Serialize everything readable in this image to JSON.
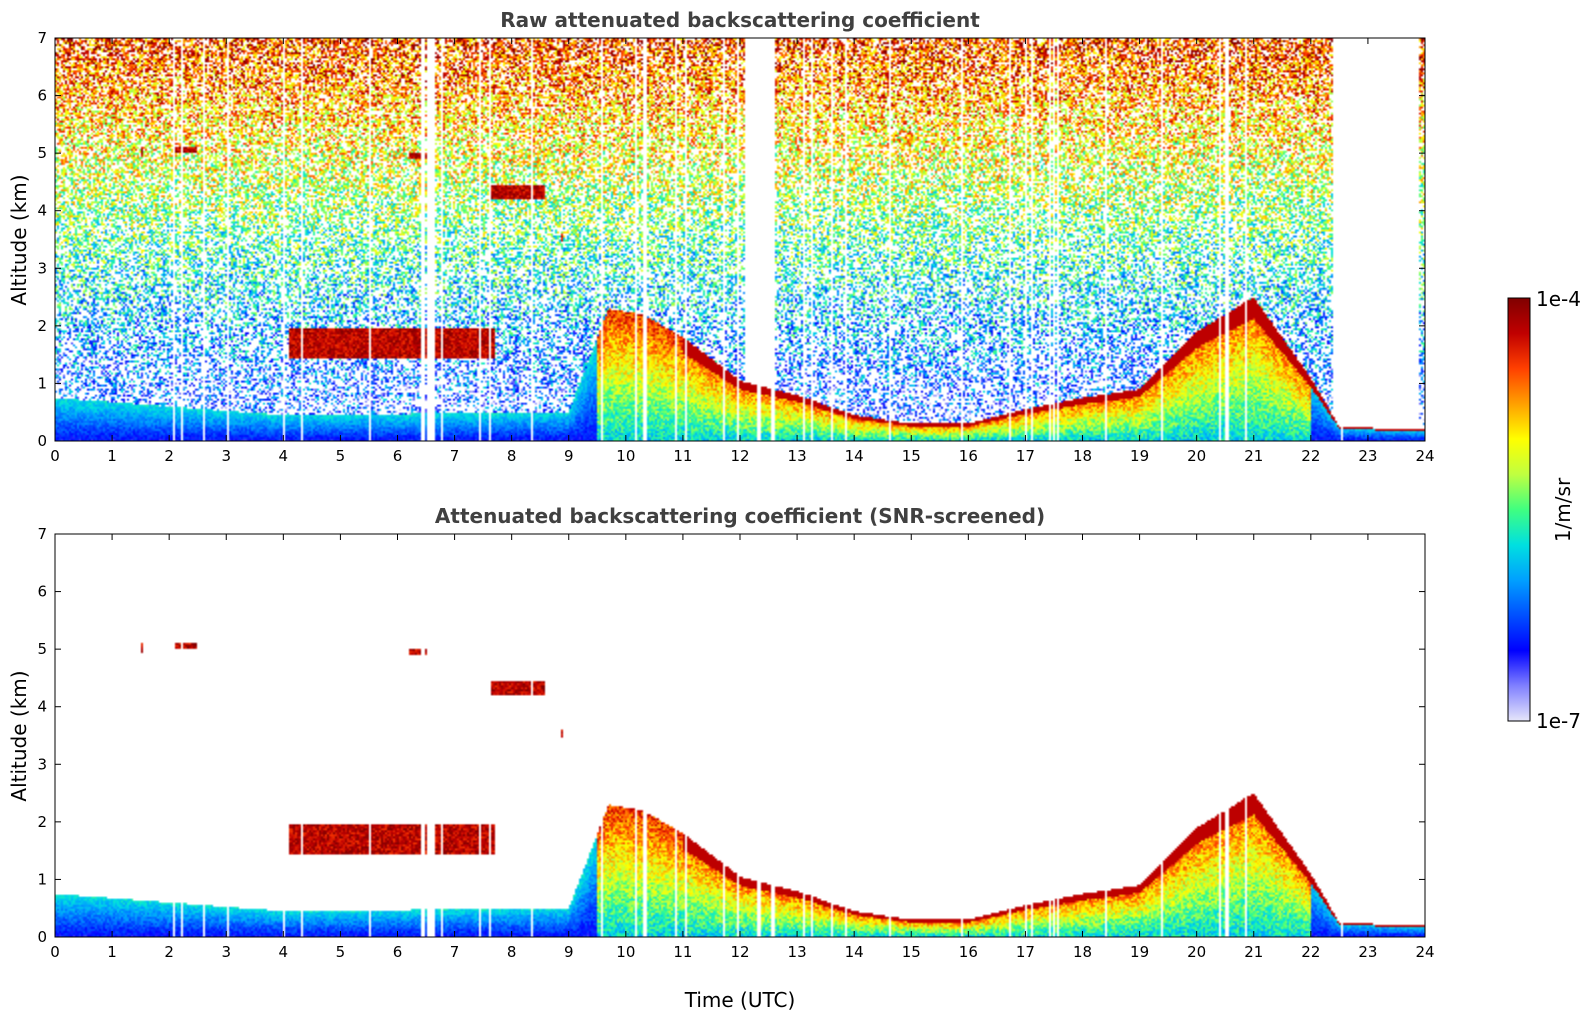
{
  "chart_data": [
    {
      "type": "heatmap",
      "title": "Raw attenuated backscattering coefficient",
      "xlabel": "",
      "ylabel": "Altitude (km)",
      "xlim": [
        0,
        24
      ],
      "ylim": [
        0,
        7
      ],
      "xticks": [
        "0",
        "1",
        "2",
        "3",
        "4",
        "5",
        "6",
        "7",
        "8",
        "9",
        "10",
        "11",
        "12",
        "13",
        "14",
        "15",
        "16",
        "17",
        "18",
        "19",
        "20",
        "21",
        "22",
        "23",
        "24"
      ],
      "yticks": [
        "0",
        "1",
        "2",
        "3",
        "4",
        "5",
        "6",
        "7"
      ],
      "screened": false
    },
    {
      "type": "heatmap",
      "title": "Attenuated backscattering coefficient (SNR-screened)",
      "xlabel": "Time (UTC)",
      "ylabel": "Altitude (km)",
      "xlim": [
        0,
        24
      ],
      "ylim": [
        0,
        7
      ],
      "xticks": [
        "0",
        "1",
        "2",
        "3",
        "4",
        "5",
        "6",
        "7",
        "8",
        "9",
        "10",
        "11",
        "12",
        "13",
        "14",
        "15",
        "16",
        "17",
        "18",
        "19",
        "20",
        "21",
        "22",
        "23",
        "24"
      ],
      "yticks": [
        "0",
        "1",
        "2",
        "3",
        "4",
        "5",
        "6",
        "7"
      ],
      "screened": true
    }
  ],
  "colorbar": {
    "max_label": "1e-4",
    "min_label": "1e-7",
    "unit_label": "1/m/sr",
    "scale": "log",
    "range": [
      1e-07,
      0.0001
    ],
    "colormap": [
      "#e6e6fa",
      "#8080ff",
      "#0000ff",
      "#0050ff",
      "#00a0ff",
      "#00e0e0",
      "#40ff80",
      "#c0ff40",
      "#ffff00",
      "#ffa000",
      "#ff4000",
      "#c00000",
      "#800000"
    ]
  },
  "features": {
    "pbl_top_km": [
      [
        0,
        0.75
      ],
      [
        4,
        0.45
      ],
      [
        9,
        0.5
      ],
      [
        9.7,
        2.3
      ],
      [
        10.3,
        2.2
      ],
      [
        11,
        1.8
      ],
      [
        12,
        1.05
      ],
      [
        13,
        0.8
      ],
      [
        14,
        0.45
      ],
      [
        15,
        0.3
      ],
      [
        16,
        0.3
      ],
      [
        17,
        0.55
      ],
      [
        18,
        0.75
      ],
      [
        19,
        0.9
      ],
      [
        20,
        1.9
      ],
      [
        21,
        2.5
      ],
      [
        22,
        1.1
      ],
      [
        22.5,
        0.25
      ],
      [
        23.8,
        0.2
      ]
    ],
    "clouds": [
      {
        "t0": 1.5,
        "t1": 1.55,
        "z0": 4.95,
        "z1": 5.1
      },
      {
        "t0": 2.1,
        "t1": 2.5,
        "z0": 5.0,
        "z1": 5.1
      },
      {
        "t0": 6.2,
        "t1": 6.5,
        "z0": 4.9,
        "z1": 5.0
      },
      {
        "t0": 7.6,
        "t1": 8.6,
        "z0": 4.2,
        "z1": 4.45
      },
      {
        "t0": 4.1,
        "t1": 7.7,
        "z0": 1.45,
        "z1": 1.95
      },
      {
        "t0": 8.85,
        "t1": 8.9,
        "z0": 3.45,
        "z1": 3.6
      }
    ]
  }
}
